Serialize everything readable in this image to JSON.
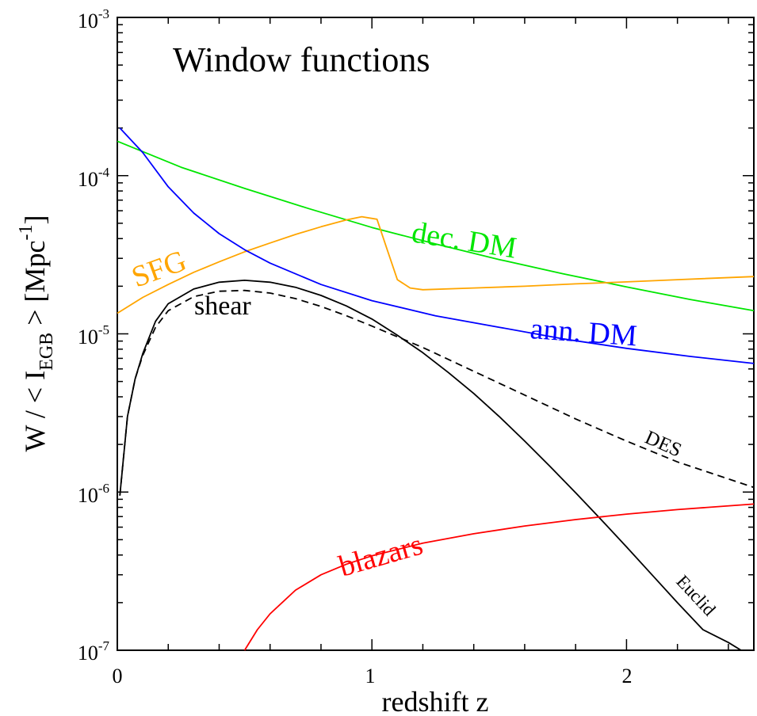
{
  "chart_data": {
    "type": "line",
    "title": "Window functions",
    "xlabel": "redshift z",
    "ylabel": {
      "main": "W / < I",
      "subscript": "EGB",
      "close": " >  [Mpc",
      "superscript": "-1",
      "end": "]"
    },
    "xlim": [
      0,
      2.5
    ],
    "ylim": [
      1e-07,
      0.001
    ],
    "yscale": "log",
    "x_ticks": [
      {
        "value": 0,
        "label": "0"
      },
      {
        "value": 1,
        "label": "1"
      },
      {
        "value": 2,
        "label": "2"
      }
    ],
    "y_ticks": [
      {
        "value": 1e-07,
        "base": "10",
        "exp": "-7"
      },
      {
        "value": 1e-06,
        "base": "10",
        "exp": "-6"
      },
      {
        "value": 1e-05,
        "base": "10",
        "exp": "-5"
      },
      {
        "value": 0.0001,
        "base": "10",
        "exp": "-4"
      },
      {
        "value": 0.001,
        "base": "10",
        "exp": "-3"
      }
    ],
    "series": [
      {
        "name": "dec. DM",
        "color": "#00e600",
        "dash": false,
        "x": [
          0.0,
          0.25,
          0.5,
          0.75,
          1.0,
          1.25,
          1.5,
          1.75,
          2.0,
          2.25,
          2.5
        ],
        "y": [
          0.000165,
          0.000113,
          8.3e-05,
          6.2e-05,
          4.7e-05,
          3.7e-05,
          2.95e-05,
          2.4e-05,
          1.98e-05,
          1.65e-05,
          1.4e-05
        ]
      },
      {
        "name": "SFG",
        "color": "#ffa500",
        "dash": false,
        "x": [
          0.0,
          0.1,
          0.2,
          0.3,
          0.4,
          0.5,
          0.6,
          0.7,
          0.8,
          0.9,
          0.96,
          1.02,
          1.06,
          1.1,
          1.15,
          1.2,
          1.4,
          1.6,
          1.8,
          2.0,
          2.2,
          2.5
        ],
        "y": [
          1.35e-05,
          1.7e-05,
          2.05e-05,
          2.45e-05,
          2.85e-05,
          3.3e-05,
          3.75e-05,
          4.25e-05,
          4.75e-05,
          5.25e-05,
          5.5e-05,
          5.3e-05,
          3.4e-05,
          2.2e-05,
          1.95e-05,
          1.9e-05,
          1.95e-05,
          2e-05,
          2.07e-05,
          2.13e-05,
          2.2e-05,
          2.3e-05
        ]
      },
      {
        "name": "ann. DM",
        "color": "#0000ff",
        "dash": false,
        "x": [
          0.01,
          0.1,
          0.2,
          0.3,
          0.4,
          0.5,
          0.6,
          0.8,
          1.0,
          1.25,
          1.5,
          1.75,
          2.0,
          2.25,
          2.5
        ],
        "y": [
          0.0002,
          0.00014,
          8.5e-05,
          5.8e-05,
          4.3e-05,
          3.4e-05,
          2.8e-05,
          2.05e-05,
          1.62e-05,
          1.3e-05,
          1.1e-05,
          9.3e-06,
          8.1e-06,
          7.2e-06,
          6.5e-06
        ]
      },
      {
        "name": "Euclid",
        "color": "#000000",
        "dash": false,
        "x": [
          0.01,
          0.04,
          0.07,
          0.1,
          0.15,
          0.2,
          0.3,
          0.4,
          0.5,
          0.6,
          0.7,
          0.8,
          0.9,
          1.0,
          1.1,
          1.2,
          1.3,
          1.4,
          1.5,
          1.6,
          1.7,
          1.8,
          1.9,
          2.0,
          2.1,
          2.2,
          2.3,
          2.4,
          2.45
        ],
        "y": [
          9.5e-07,
          3e-06,
          5.2e-06,
          7.5e-06,
          1.2e-05,
          1.55e-05,
          1.92e-05,
          2.12e-05,
          2.18e-05,
          2.12e-05,
          1.97e-05,
          1.75e-05,
          1.5e-05,
          1.24e-05,
          9.8e-06,
          7.6e-06,
          5.7e-06,
          4.2e-06,
          3e-06,
          2.1e-06,
          1.45e-06,
          9.9e-07,
          6.7e-07,
          4.5e-07,
          3e-07,
          2e-07,
          1.35e-07,
          1.12e-07,
          1e-07
        ]
      },
      {
        "name": "DES",
        "color": "#000000",
        "dash": true,
        "x": [
          0.01,
          0.04,
          0.07,
          0.1,
          0.15,
          0.2,
          0.3,
          0.4,
          0.5,
          0.6,
          0.7,
          0.8,
          0.9,
          1.0,
          1.2,
          1.4,
          1.6,
          1.8,
          2.0,
          2.2,
          2.5
        ],
        "y": [
          9.5e-07,
          3e-06,
          5.2e-06,
          7.3e-06,
          1.1e-05,
          1.4e-05,
          1.72e-05,
          1.86e-05,
          1.88e-05,
          1.81e-05,
          1.67e-05,
          1.49e-05,
          1.3e-05,
          1.12e-05,
          8.2e-06,
          5.8e-06,
          4.1e-06,
          2.9e-06,
          2.1e-06,
          1.55e-06,
          1.07e-06
        ]
      },
      {
        "name": "blazars",
        "color": "#ff0000",
        "dash": false,
        "x": [
          0.5,
          0.55,
          0.6,
          0.7,
          0.8,
          0.9,
          1.0,
          1.2,
          1.4,
          1.6,
          1.8,
          2.0,
          2.2,
          2.5
        ],
        "y": [
          1e-07,
          1.35e-07,
          1.7e-07,
          2.4e-07,
          3e-07,
          3.5e-07,
          3.95e-07,
          4.75e-07,
          5.45e-07,
          6.1e-07,
          6.7e-07,
          7.25e-07,
          7.75e-07,
          8.4e-07
        ]
      }
    ],
    "curve_labels": [
      {
        "text": "dec. DM",
        "color": "#00e600"
      },
      {
        "text": "SFG",
        "color": "#ffa500"
      },
      {
        "text": "ann. DM",
        "color": "#0000ff"
      },
      {
        "text": "shear",
        "color": "#000000"
      },
      {
        "text": "DES",
        "color": "#000000"
      },
      {
        "text": "Euclid",
        "color": "#000000"
      },
      {
        "text": "blazars",
        "color": "#ff0000"
      }
    ]
  }
}
